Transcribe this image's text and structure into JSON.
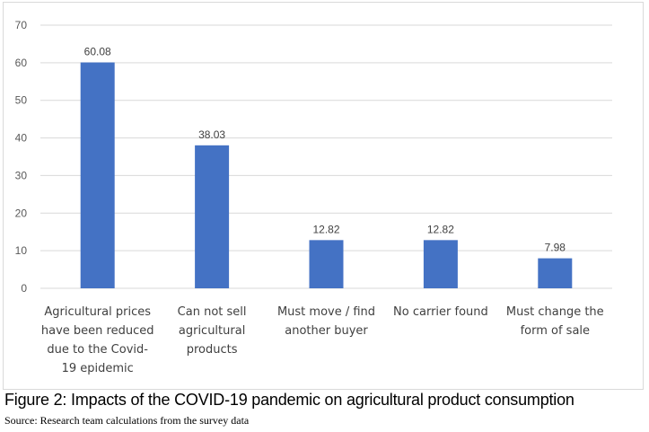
{
  "chart_data": {
    "type": "bar",
    "categories": [
      [
        "Agricultural prices",
        "have been reduced",
        "due to the Covid-",
        "19 epidemic"
      ],
      [
        "Can not sell",
        "agricultural",
        "products"
      ],
      [
        "Must move / find",
        "another buyer"
      ],
      [
        "No carrier found"
      ],
      [
        "Must change the",
        "form of sale"
      ]
    ],
    "values": [
      60.08,
      38.03,
      12.82,
      12.82,
      7.98
    ],
    "data_labels": [
      "60.08",
      "38.03",
      "12.82",
      "12.82",
      "7.98"
    ],
    "y_ticks": [
      "0",
      "10",
      "20",
      "30",
      "40",
      "50",
      "60",
      "70"
    ],
    "ylim": [
      0,
      70
    ],
    "grid": true,
    "bar_color": "#4472C4",
    "grid_color": "#d9d9d9"
  },
  "caption": "Figure 2: Impacts of the COVID-19 pandemic on agricultural product consumption",
  "source": "Source: Research team calculations from the survey data"
}
